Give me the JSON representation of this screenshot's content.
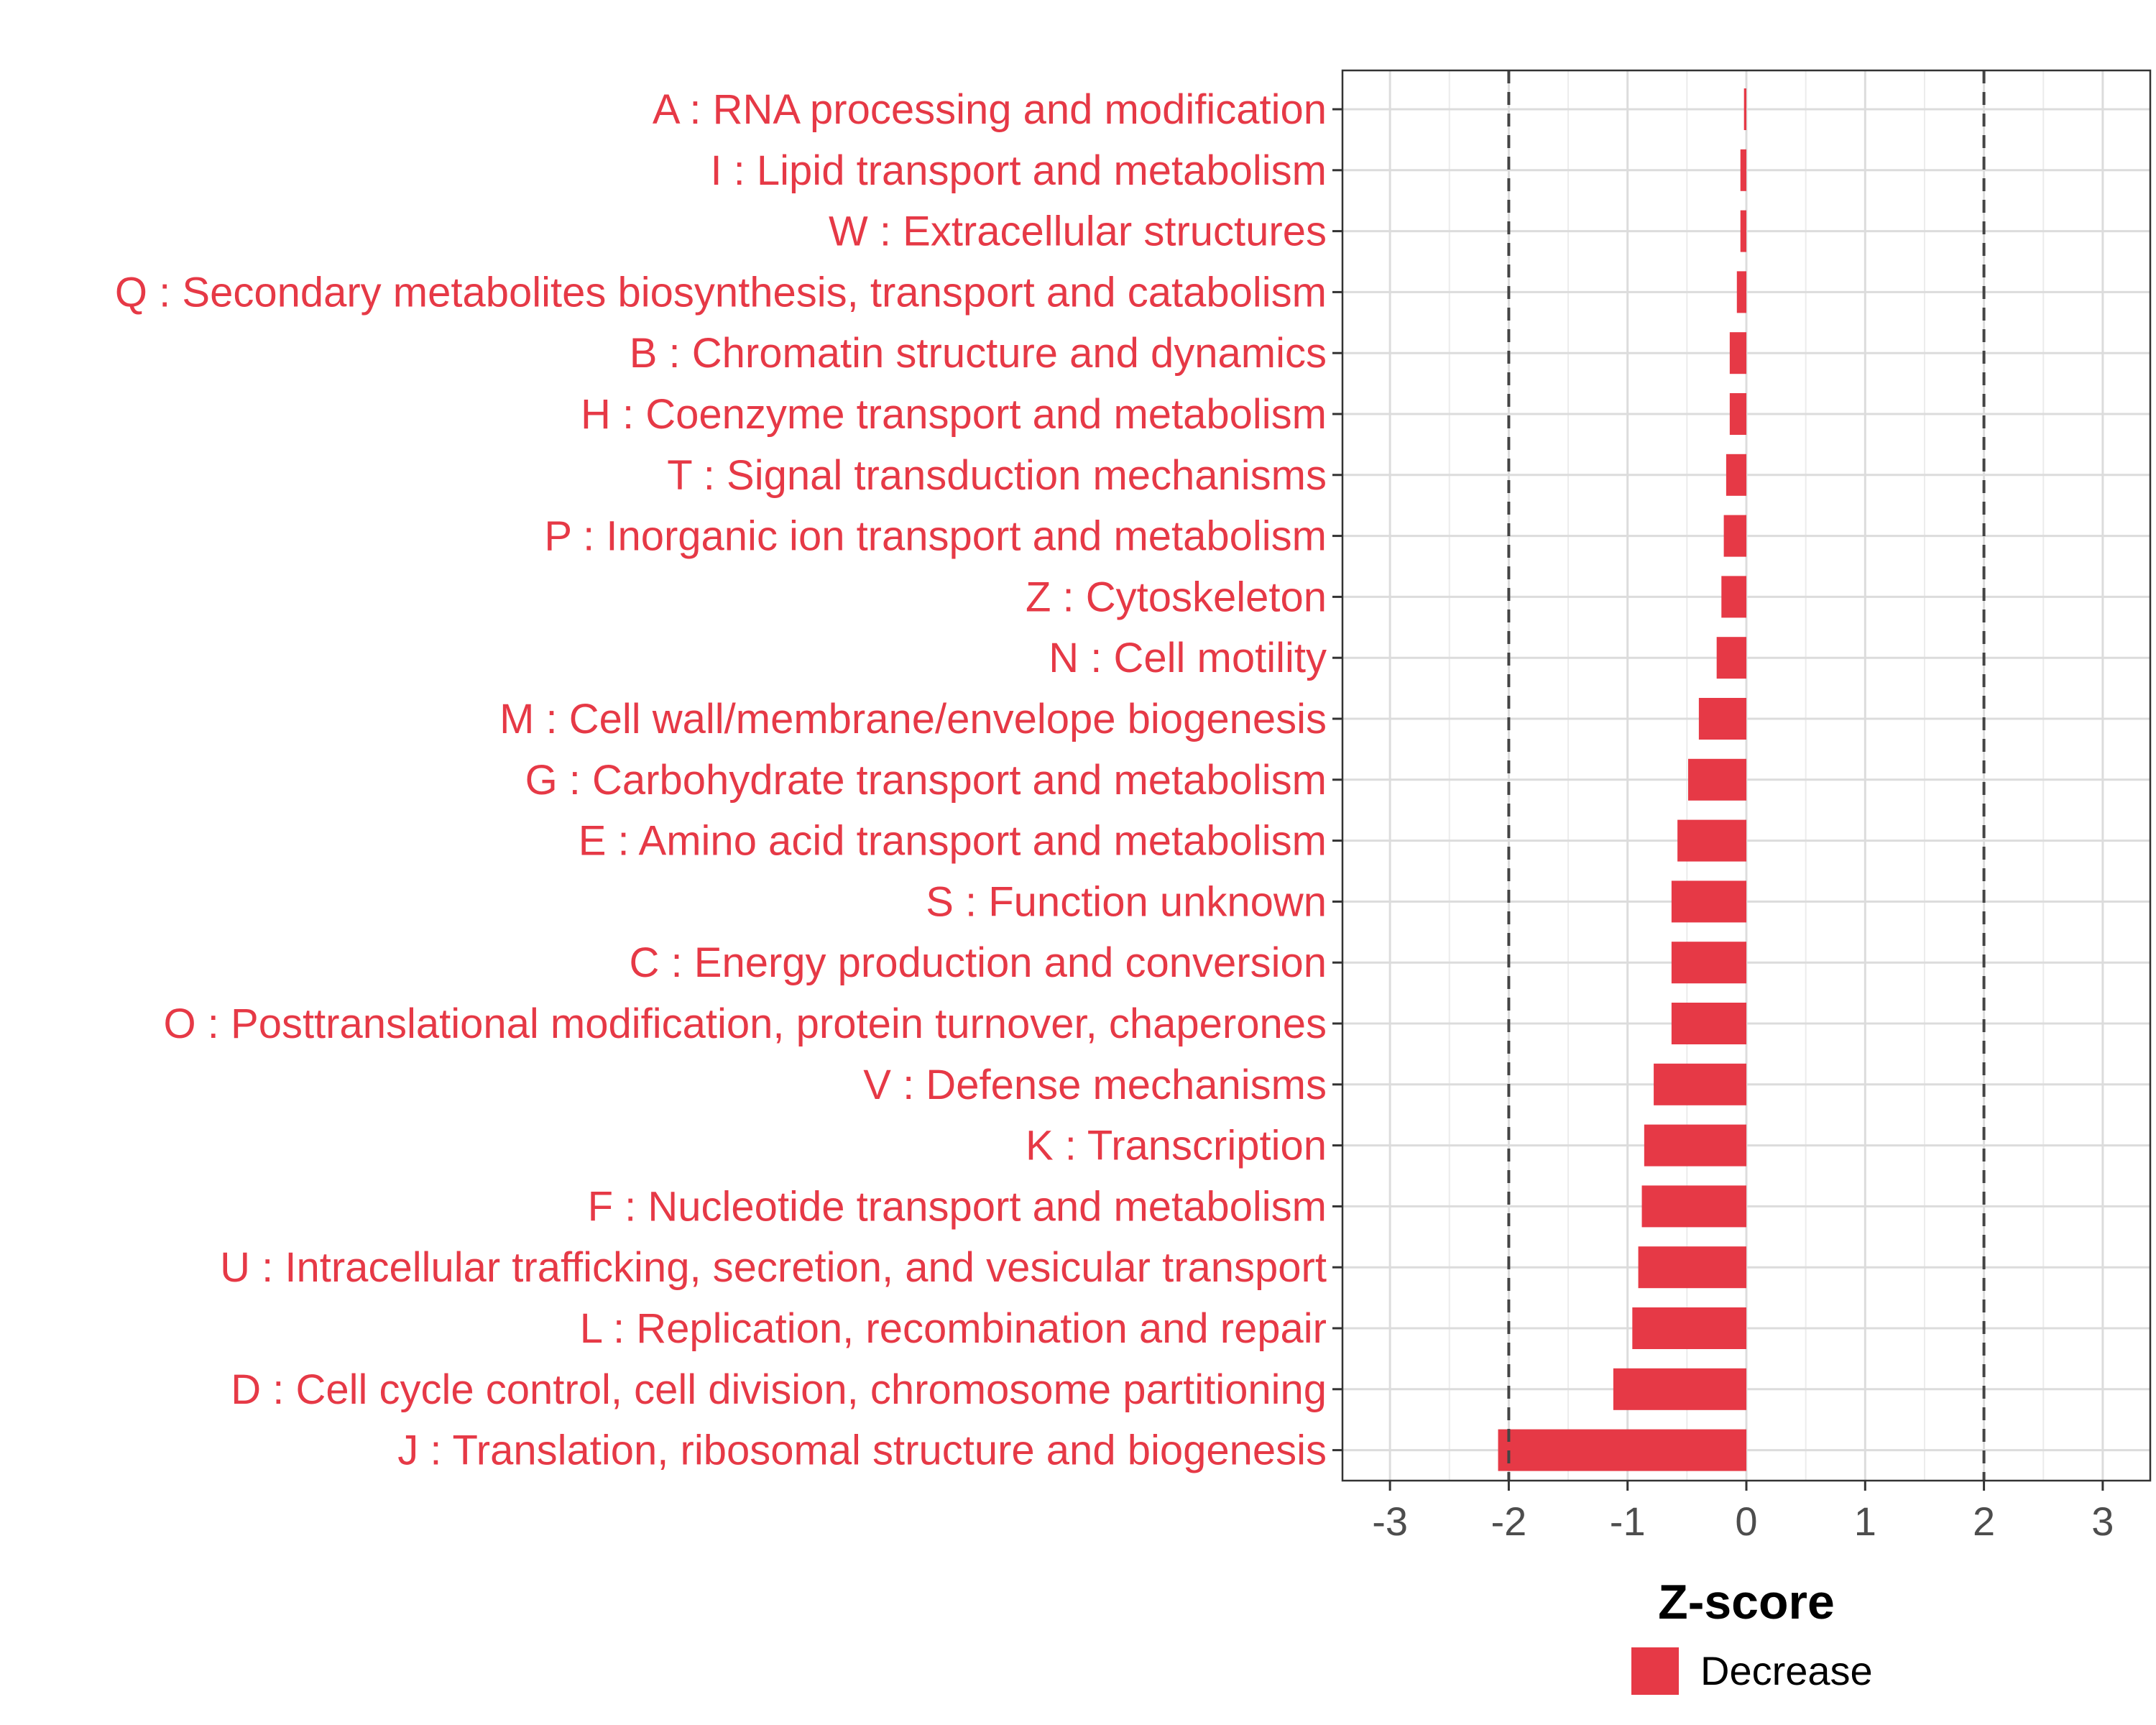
{
  "chart_data": {
    "type": "bar",
    "orientation": "horizontal",
    "categories": [
      "A : RNA processing and modification",
      "I : Lipid transport and metabolism",
      "W : Extracellular structures",
      "Q : Secondary metabolites biosynthesis, transport and catabolism",
      "B : Chromatin structure and dynamics",
      "H : Coenzyme transport and metabolism",
      "T : Signal transduction mechanisms",
      "P : Inorganic ion transport and metabolism",
      "Z : Cytoskeleton",
      "N : Cell motility",
      "M : Cell wall/membrane/envelope biogenesis",
      "G : Carbohydrate transport and metabolism",
      "E : Amino acid transport and metabolism",
      "S : Function unknown",
      "C : Energy production and conversion",
      "O : Posttranslational modification, protein turnover, chaperones",
      "V : Defense mechanisms",
      "K : Transcription",
      "F : Nucleotide transport and metabolism",
      "U : Intracellular trafficking, secretion, and vesicular transport",
      "L : Replication, recombination and repair",
      "D : Cell cycle control, cell division, chromosome partitioning",
      "J : Translation, ribosomal structure and biogenesis"
    ],
    "series": [
      {
        "name": "Decrease",
        "color": "#E63946",
        "values": [
          -0.02,
          -0.05,
          -0.05,
          -0.08,
          -0.14,
          -0.14,
          -0.17,
          -0.19,
          -0.21,
          -0.25,
          -0.4,
          -0.49,
          -0.58,
          -0.63,
          -0.63,
          -0.63,
          -0.78,
          -0.86,
          -0.88,
          -0.91,
          -0.96,
          -1.12,
          -2.09
        ]
      }
    ],
    "xlabel": "Z-score",
    "xlim": [
      -3.4,
      3.4
    ],
    "xticks": [
      "-3",
      "-2",
      "-1",
      "0",
      "1",
      "2",
      "3"
    ],
    "threshold_lines": [
      -2,
      2
    ],
    "grid": true,
    "legend": {
      "position": "bottom",
      "entries": [
        "Decrease"
      ]
    },
    "label_color": "#E63946",
    "bar_color": "#E63946"
  }
}
